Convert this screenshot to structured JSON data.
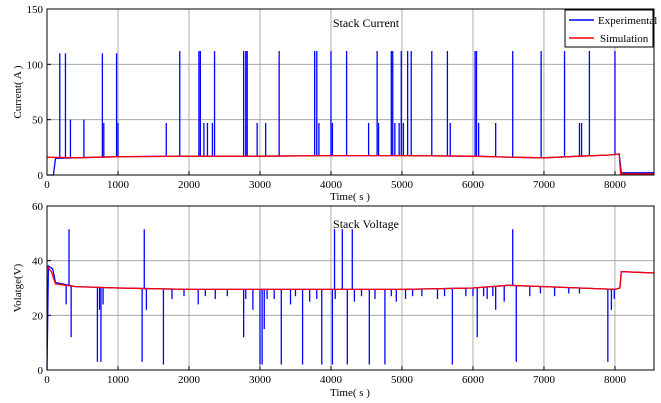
{
  "chart_data": [
    {
      "type": "line",
      "title": "Stack Current",
      "xlabel": "Time( s )",
      "ylabel": "Current( A )",
      "xlim": [
        0,
        8550
      ],
      "ylim": [
        0,
        150
      ],
      "xticks": [
        0,
        1000,
        2000,
        3000,
        4000,
        5000,
        6000,
        7000,
        8000
      ],
      "yticks": [
        0,
        50,
        100,
        150
      ],
      "grid": true,
      "legend": "top-right",
      "series": [
        {
          "name": "Experimental",
          "color": "#0000ff",
          "baseline": [
            [
              0,
              0
            ],
            [
              90,
              0
            ],
            [
              120,
              15
            ],
            [
              400,
              15.5
            ],
            [
              1000,
              16.5
            ],
            [
              2000,
              17
            ],
            [
              3000,
              17
            ],
            [
              4000,
              17.5
            ],
            [
              5000,
              17.5
            ],
            [
              6000,
              17
            ],
            [
              6600,
              16
            ],
            [
              7000,
              15.5
            ],
            [
              7500,
              17
            ],
            [
              7900,
              18
            ],
            [
              8000,
              18.5
            ],
            [
              8060,
              19
            ],
            [
              8090,
              2
            ],
            [
              8550,
              2
            ]
          ],
          "spikes": [
            [
              180,
              110
            ],
            [
              260,
              110
            ],
            [
              330,
              50
            ],
            [
              520,
              50
            ],
            [
              780,
              110
            ],
            [
              800,
              47
            ],
            [
              980,
              110
            ],
            [
              1000,
              47
            ],
            [
              1680,
              47
            ],
            [
              1870,
              112
            ],
            [
              2140,
              112
            ],
            [
              2160,
              112
            ],
            [
              2210,
              47
            ],
            [
              2260,
              47
            ],
            [
              2330,
              47
            ],
            [
              2360,
              112
            ],
            [
              2770,
              112
            ],
            [
              2800,
              112
            ],
            [
              2820,
              112
            ],
            [
              2960,
              47
            ],
            [
              3080,
              47
            ],
            [
              3270,
              112
            ],
            [
              3770,
              112
            ],
            [
              3800,
              112
            ],
            [
              3830,
              47
            ],
            [
              4000,
              112
            ],
            [
              4020,
              47
            ],
            [
              4220,
              112
            ],
            [
              4530,
              47
            ],
            [
              4650,
              112
            ],
            [
              4670,
              47
            ],
            [
              4850,
              112
            ],
            [
              4870,
              112
            ],
            [
              4900,
              47
            ],
            [
              4960,
              47
            ],
            [
              4990,
              112
            ],
            [
              5020,
              47
            ],
            [
              5080,
              112
            ],
            [
              5130,
              112
            ],
            [
              5420,
              112
            ],
            [
              5640,
              112
            ],
            [
              5680,
              47
            ],
            [
              6030,
              112
            ],
            [
              6050,
              112
            ],
            [
              6080,
              47
            ],
            [
              6320,
              47
            ],
            [
              6560,
              112
            ],
            [
              6960,
              112
            ],
            [
              7290,
              112
            ],
            [
              7500,
              47
            ],
            [
              7530,
              47
            ],
            [
              7640,
              112
            ],
            [
              8000,
              112
            ]
          ]
        },
        {
          "name": "Simulation",
          "color": "#ff0000",
          "values": [
            [
              0,
              16
            ],
            [
              100,
              16
            ],
            [
              400,
              15.5
            ],
            [
              1000,
              16.5
            ],
            [
              2000,
              17
            ],
            [
              3000,
              17
            ],
            [
              4000,
              17.5
            ],
            [
              5000,
              17.5
            ],
            [
              6000,
              17
            ],
            [
              6600,
              16
            ],
            [
              7000,
              15.5
            ],
            [
              7500,
              17
            ],
            [
              7900,
              18
            ],
            [
              8000,
              18.5
            ],
            [
              8060,
              19
            ],
            [
              8080,
              1
            ],
            [
              8550,
              1
            ]
          ]
        }
      ]
    },
    {
      "type": "line",
      "title": "Stack Voltage",
      "xlabel": "Time( s )",
      "ylabel": "Volatge(V)",
      "xlim": [
        0,
        8550
      ],
      "ylim": [
        0,
        60
      ],
      "xticks": [
        0,
        1000,
        2000,
        3000,
        4000,
        5000,
        6000,
        7000,
        8000
      ],
      "yticks": [
        0,
        20,
        40,
        60
      ],
      "grid": true,
      "series": [
        {
          "name": "Experimental",
          "color": "#0000ff",
          "baseline": [
            [
              0,
              0
            ],
            [
              20,
              38
            ],
            [
              80,
              37
            ],
            [
              120,
              32
            ],
            [
              400,
              30.5
            ],
            [
              1000,
              30
            ],
            [
              2000,
              29.5
            ],
            [
              3000,
              29.5
            ],
            [
              4000,
              29.5
            ],
            [
              5000,
              29.5
            ],
            [
              6000,
              30
            ],
            [
              6500,
              31
            ],
            [
              7000,
              30.5
            ],
            [
              7500,
              30
            ],
            [
              8000,
              29.5
            ],
            [
              8070,
              30
            ],
            [
              8090,
              36
            ],
            [
              8550,
              35.5
            ]
          ],
          "up_spikes": [
            [
              310,
              51.5
            ],
            [
              1370,
              51.5
            ],
            [
              4050,
              51.5
            ],
            [
              4160,
              51.5
            ],
            [
              4300,
              51.5
            ],
            [
              6560,
              51.5
            ]
          ],
          "down_spikes": [
            [
              270,
              24
            ],
            [
              340,
              12
            ],
            [
              710,
              3
            ],
            [
              740,
              22
            ],
            [
              760,
              3
            ],
            [
              790,
              24
            ],
            [
              1340,
              3
            ],
            [
              1400,
              22
            ],
            [
              1640,
              2
            ],
            [
              1760,
              26
            ],
            [
              1930,
              27
            ],
            [
              2130,
              24
            ],
            [
              2230,
              27
            ],
            [
              2370,
              26
            ],
            [
              2540,
              27
            ],
            [
              2770,
              12
            ],
            [
              2800,
              26
            ],
            [
              2900,
              22
            ],
            [
              3000,
              2
            ],
            [
              3030,
              2
            ],
            [
              3060,
              15
            ],
            [
              3100,
              26
            ],
            [
              3200,
              26
            ],
            [
              3300,
              2
            ],
            [
              3430,
              24
            ],
            [
              3500,
              27
            ],
            [
              3600,
              2
            ],
            [
              3700,
              25
            ],
            [
              3800,
              26
            ],
            [
              3870,
              2
            ],
            [
              4020,
              2
            ],
            [
              4060,
              26
            ],
            [
              4230,
              2
            ],
            [
              4330,
              25
            ],
            [
              4430,
              27
            ],
            [
              4540,
              2
            ],
            [
              4620,
              26
            ],
            [
              4760,
              2
            ],
            [
              4850,
              27
            ],
            [
              4920,
              25
            ],
            [
              5050,
              26
            ],
            [
              5150,
              27
            ],
            [
              5280,
              27
            ],
            [
              5500,
              26
            ],
            [
              5600,
              27
            ],
            [
              5710,
              2
            ],
            [
              5900,
              27
            ],
            [
              6000,
              27
            ],
            [
              6060,
              12
            ],
            [
              6150,
              27
            ],
            [
              6200,
              26
            ],
            [
              6280,
              27
            ],
            [
              6320,
              22
            ],
            [
              6440,
              25
            ],
            [
              6610,
              3
            ],
            [
              6800,
              27
            ],
            [
              6950,
              28
            ],
            [
              7150,
              27
            ],
            [
              7350,
              28
            ],
            [
              7500,
              28
            ],
            [
              7900,
              3
            ],
            [
              7950,
              22
            ],
            [
              7990,
              26
            ]
          ]
        },
        {
          "name": "Simulation",
          "color": "#ff0000",
          "values": [
            [
              0,
              38
            ],
            [
              60,
              36
            ],
            [
              120,
              31.5
            ],
            [
              400,
              30.5
            ],
            [
              1000,
              30
            ],
            [
              2000,
              29.5
            ],
            [
              3000,
              29.5
            ],
            [
              4000,
              29.5
            ],
            [
              5000,
              29.5
            ],
            [
              6000,
              30
            ],
            [
              6500,
              31
            ],
            [
              7000,
              30.5
            ],
            [
              7500,
              30
            ],
            [
              8000,
              29.5
            ],
            [
              8070,
              30
            ],
            [
              8090,
              36
            ],
            [
              8550,
              35.5
            ]
          ]
        }
      ]
    }
  ]
}
